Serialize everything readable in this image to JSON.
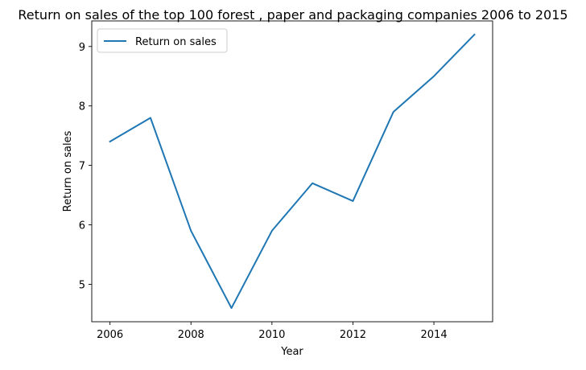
{
  "chart_data": {
    "type": "line",
    "title": "Return on sales of the top 100 forest , paper and packaging companies 2006 to 2015",
    "xlabel": "Year",
    "ylabel": "Return on sales",
    "x": [
      2006,
      2007,
      2008,
      2009,
      2010,
      2011,
      2012,
      2013,
      2014,
      2015
    ],
    "series": [
      {
        "name": "Return on sales",
        "values": [
          7.4,
          7.8,
          5.9,
          4.6,
          5.9,
          6.7,
          6.4,
          7.9,
          8.5,
          9.2
        ],
        "color": "#1f77b4"
      }
    ],
    "xlim": [
      2005.55,
      2015.45
    ],
    "ylim": [
      4.37,
      9.43
    ],
    "xticks": [
      "2006",
      "2008",
      "2010",
      "2012",
      "2014"
    ],
    "yticks": [
      "5",
      "6",
      "7",
      "8",
      "9"
    ],
    "legend_position": "top-left",
    "grid": false
  }
}
